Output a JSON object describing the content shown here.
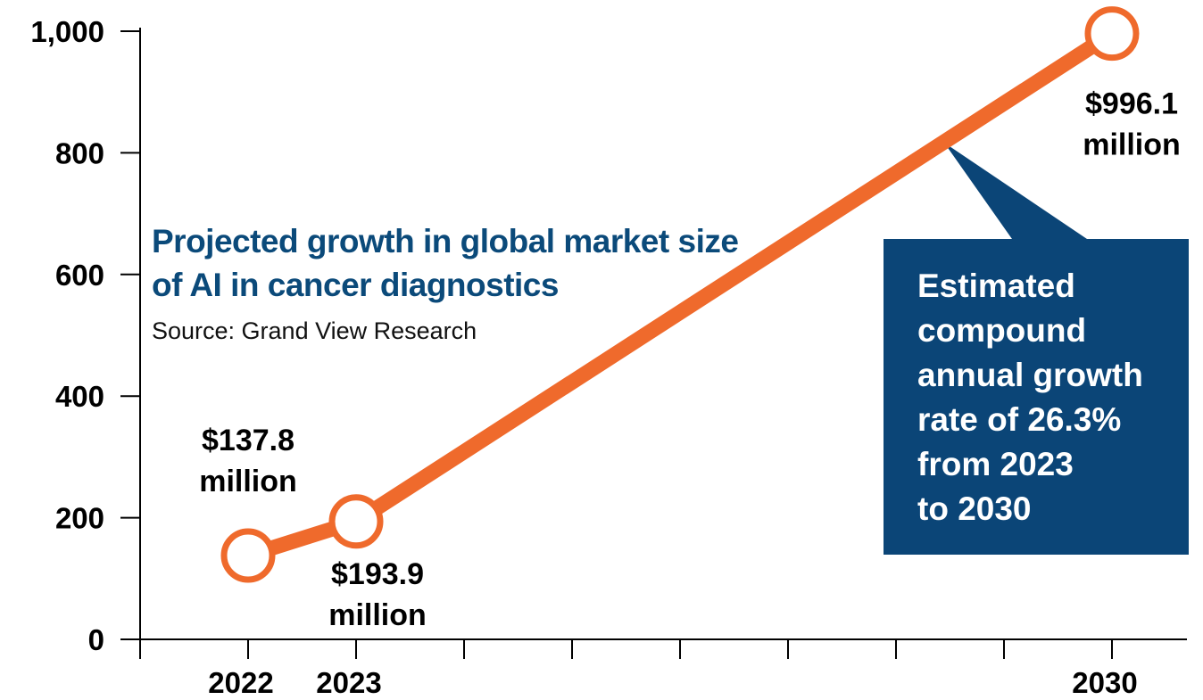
{
  "colors": {
    "line": "#ef6a2c",
    "callout_bg": "#0b4577",
    "title": "#0b4a7a",
    "axis": "#000000"
  },
  "title": "Projected growth in global market size of AI in cancer diagnostics",
  "source": "Source: Grand View Research",
  "callout": "Estimated\ncompound\nannual growth\nrate of 26.3%\nfrom 2023\nto 2030",
  "chart_data": {
    "type": "line",
    "title": "Projected growth in global market size of AI in cancer diagnostics",
    "xlabel": "",
    "ylabel": "",
    "xlim": [
      2021,
      2030.7
    ],
    "ylim": [
      0,
      1000
    ],
    "y_ticks": [
      0,
      200,
      400,
      600,
      800,
      1000
    ],
    "y_tick_labels": [
      "0",
      "200",
      "400",
      "600",
      "800",
      "1,000"
    ],
    "x_ticks": [
      2021,
      2022,
      2023,
      2024,
      2025,
      2026,
      2027,
      2028,
      2029,
      2030
    ],
    "x_tick_labels": [
      {
        "x": 2022,
        "label": "2022"
      },
      {
        "x": 2023,
        "label": "2023"
      },
      {
        "x": 2030,
        "label": "2030"
      }
    ],
    "grid": false,
    "series": [
      {
        "points": [
          {
            "x": 2022,
            "y": 137.8,
            "label": "$137.8\nmillion"
          },
          {
            "x": 2023,
            "y": 193.9,
            "label": "$193.9\nmillion"
          },
          {
            "x": 2030,
            "y": 996.1,
            "label": "$996.1\nmillion"
          }
        ]
      }
    ]
  }
}
